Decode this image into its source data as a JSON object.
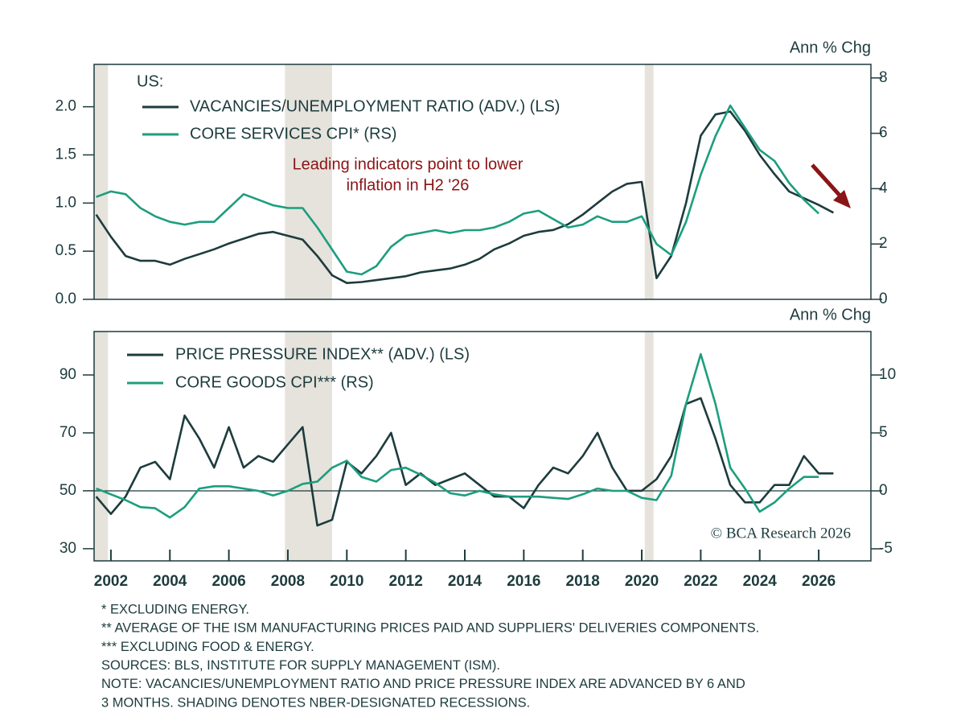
{
  "chart_data": [
    {
      "type": "line",
      "legend_title": "US:",
      "y2label": "Ann % Chg",
      "annotation": [
        "Leading indicators point to lower",
        "inflation in H2 '26"
      ],
      "xlim": [
        2001.43,
        2027.77
      ],
      "ylim": [
        0,
        2.44
      ],
      "yticks": [
        {
          "value": 0,
          "label": "0.0"
        },
        0.5,
        {
          "value": 1,
          "label": "1.0"
        },
        1.5,
        {
          "value": 2,
          "label": "2.0"
        }
      ],
      "y2lim": [
        0,
        8.49
      ],
      "y2ticks": [
        0,
        2,
        4,
        6,
        8
      ],
      "recessions": [
        [
          2001.43,
          2001.9
        ],
        [
          2007.9,
          2009.5
        ],
        [
          2020.1,
          2020.4
        ]
      ],
      "x": [
        2001.5,
        2002,
        2002.5,
        2003,
        2003.5,
        2004,
        2004.5,
        2005,
        2005.5,
        2006,
        2006.5,
        2007,
        2007.5,
        2008,
        2008.5,
        2009,
        2009.5,
        2010,
        2010.5,
        2011,
        2011.5,
        2012,
        2012.5,
        2013,
        2013.5,
        2014,
        2014.5,
        2015,
        2015.5,
        2016,
        2016.5,
        2017,
        2017.5,
        2018,
        2018.5,
        2019,
        2019.5,
        2020,
        2020.5,
        2021,
        2021.5,
        2022,
        2022.5,
        2023,
        2023.5,
        2024,
        2024.5,
        2025,
        2025.5,
        2026,
        2026.5
      ],
      "series": [
        {
          "name": "VACANCIES/UNEMPLOYMENT RATIO (ADV.) (LS)",
          "color": "#1d3b3d",
          "axis": "y",
          "values": [
            0.88,
            0.65,
            0.45,
            0.4,
            0.4,
            0.36,
            0.42,
            0.47,
            0.52,
            0.58,
            0.63,
            0.68,
            0.7,
            0.66,
            0.62,
            0.45,
            0.25,
            0.17,
            0.18,
            0.2,
            0.22,
            0.24,
            0.28,
            0.3,
            0.32,
            0.36,
            0.42,
            0.52,
            0.58,
            0.66,
            0.7,
            0.72,
            0.78,
            0.88,
            1.0,
            1.12,
            1.2,
            1.22,
            0.22,
            0.45,
            1.0,
            1.7,
            1.92,
            1.95,
            1.75,
            1.5,
            1.3,
            1.12,
            1.05,
            0.98,
            0.9
          ]
        },
        {
          "name": "CORE SERVICES CPI* (RS)",
          "color": "#1c9e7e",
          "axis": "y2",
          "values": [
            3.7,
            3.9,
            3.8,
            3.3,
            3.0,
            2.8,
            2.7,
            2.8,
            2.8,
            3.3,
            3.8,
            3.6,
            3.4,
            3.3,
            3.3,
            2.6,
            1.8,
            1.0,
            0.9,
            1.2,
            1.9,
            2.3,
            2.4,
            2.5,
            2.4,
            2.5,
            2.5,
            2.6,
            2.8,
            3.1,
            3.2,
            2.9,
            2.6,
            2.7,
            3.0,
            2.8,
            2.8,
            3.0,
            2.0,
            1.6,
            2.8,
            4.5,
            5.9,
            7.0,
            6.2,
            5.4,
            5.0,
            4.2,
            3.6,
            3.1,
            null
          ]
        }
      ]
    },
    {
      "type": "line",
      "y2label": "Ann % Chg",
      "credit": "© BCA Research 2026",
      "zero_line": true,
      "xlim": [
        2001.43,
        2027.77
      ],
      "xticks": [
        2002,
        2004,
        2006,
        2008,
        2010,
        2012,
        2014,
        2016,
        2018,
        2020,
        2022,
        2024,
        2026
      ],
      "ylim": [
        25.8,
        105
      ],
      "yticks": [
        30,
        50,
        70,
        90
      ],
      "y2lim": [
        -6.04,
        13.75
      ],
      "y2ticks": [
        -5,
        0,
        5,
        10
      ],
      "recessions": [
        [
          2001.43,
          2001.9
        ],
        [
          2007.9,
          2009.5
        ],
        [
          2020.1,
          2020.4
        ]
      ],
      "x": [
        2001.5,
        2002,
        2002.5,
        2003,
        2003.5,
        2004,
        2004.5,
        2005,
        2005.5,
        2006,
        2006.5,
        2007,
        2007.5,
        2008,
        2008.5,
        2009,
        2009.5,
        2010,
        2010.5,
        2011,
        2011.5,
        2012,
        2012.5,
        2013,
        2013.5,
        2014,
        2014.5,
        2015,
        2015.5,
        2016,
        2016.5,
        2017,
        2017.5,
        2018,
        2018.5,
        2019,
        2019.5,
        2020,
        2020.5,
        2021,
        2021.5,
        2022,
        2022.5,
        2023,
        2023.5,
        2024,
        2024.5,
        2025,
        2025.5,
        2026,
        2026.5
      ],
      "series": [
        {
          "name": "PRICE PRESSURE INDEX** (ADV.) (LS)",
          "color": "#1d3b3d",
          "axis": "y",
          "values": [
            48,
            42,
            48,
            58,
            60,
            54,
            76,
            68,
            58,
            72,
            58,
            62,
            60,
            66,
            72,
            38,
            40,
            60,
            56,
            62,
            70,
            52,
            56,
            52,
            54,
            56,
            52,
            48,
            48,
            44,
            52,
            58,
            56,
            62,
            70,
            58,
            50,
            50,
            54,
            62,
            80,
            82,
            68,
            52,
            46,
            46,
            52,
            52,
            62,
            56,
            56
          ]
        },
        {
          "name": "CORE GOODS CPI*** (RS)",
          "color": "#1c9e7e",
          "axis": "y2",
          "values": [
            0.2,
            -0.3,
            -0.8,
            -1.4,
            -1.5,
            -2.3,
            -1.4,
            0.2,
            0.4,
            0.4,
            0.2,
            0.0,
            -0.4,
            0.0,
            0.6,
            0.8,
            2.0,
            2.6,
            1.2,
            0.8,
            1.8,
            2.0,
            1.4,
            0.7,
            -0.2,
            -0.4,
            0.0,
            -0.3,
            -0.5,
            -0.5,
            -0.5,
            -0.6,
            -0.7,
            -0.3,
            0.2,
            0.0,
            0.0,
            -0.6,
            -0.8,
            1.3,
            7.5,
            11.8,
            7.5,
            2.0,
            0.2,
            -1.8,
            -1.0,
            0.2,
            1.2,
            1.2,
            null
          ]
        }
      ]
    }
  ],
  "notes": [
    "* EXCLUDING ENERGY.",
    "** AVERAGE OF THE ISM MANUFACTURING PRICES PAID AND SUPPLIERS' DELIVERIES COMPONENTS.",
    "*** EXCLUDING FOOD & ENERGY.",
    "SOURCES: BLS, INSTITUTE FOR SUPPLY MANAGEMENT (ISM).",
    "NOTE: VACANCIES/UNEMPLOYMENT RATIO AND PRICE PRESSURE INDEX ARE ADVANCED BY 6 AND",
    "3 MONTHS. SHADING DENOTES NBER-DESIGNATED RECESSIONS."
  ]
}
